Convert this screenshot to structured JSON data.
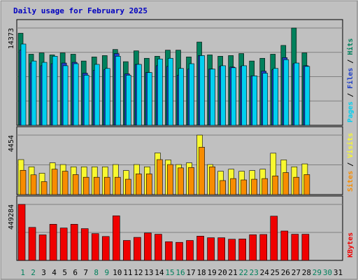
{
  "chart_data": [
    {
      "type": "bar",
      "title": "Daily usage for February 2025",
      "panel": "pages-files-hits",
      "ymax_label": "14373",
      "ylim": [
        0,
        14373
      ],
      "categories": [
        "1",
        "2",
        "3",
        "4",
        "5",
        "6",
        "7",
        "8",
        "9",
        "10",
        "11",
        "12",
        "13",
        "14",
        "15",
        "16",
        "17",
        "18",
        "19",
        "20",
        "21",
        "22",
        "23",
        "24",
        "25",
        "26",
        "27",
        "28",
        "29",
        "30",
        "31"
      ],
      "weekend_days": [
        1,
        2,
        8,
        9,
        15,
        16,
        22,
        23,
        29,
        30
      ],
      "y_axis_words": [
        "Hits",
        "Files",
        "Pages"
      ],
      "series": [
        {
          "name": "Hits",
          "color": "#00805C",
          "values": [
            13600,
            10500,
            10700,
            10400,
            10700,
            10500,
            9500,
            10100,
            10300,
            11200,
            9400,
            11000,
            9900,
            10200,
            11100,
            11100,
            10100,
            12300,
            10400,
            10200,
            10300,
            10600,
            9500,
            9900,
            10500,
            11800,
            14373,
            10700,
            0,
            0,
            0
          ]
        },
        {
          "name": "Files",
          "color": "#2040C8",
          "values": [
            11100,
            9200,
            8800,
            9100,
            9200,
            9300,
            7700,
            8100,
            8200,
            10600,
            7600,
            9000,
            7800,
            8800,
            8700,
            7400,
            8300,
            10300,
            8300,
            8700,
            8600,
            8700,
            7300,
            8000,
            8200,
            10000,
            9100,
            8800,
            0,
            0,
            0
          ]
        },
        {
          "name": "Pages",
          "color": "#00D0F0",
          "values": [
            12000,
            9500,
            9300,
            10200,
            8800,
            9100,
            7400,
            9000,
            8400,
            10200,
            7400,
            9000,
            7800,
            9800,
            9900,
            8400,
            9100,
            10300,
            8300,
            8800,
            8500,
            8800,
            7300,
            7700,
            8400,
            9700,
            9200,
            8700,
            0,
            0,
            0
          ]
        }
      ]
    },
    {
      "type": "bar",
      "panel": "visits-sites",
      "ymax_label": "4454",
      "ylim": [
        0,
        4454
      ],
      "y_axis_words": [
        "Visits",
        "Sites"
      ],
      "series": [
        {
          "name": "Visits",
          "color": "#F8F830",
          "values": [
            2620,
            2080,
            1600,
            2380,
            2250,
            2080,
            2080,
            2080,
            2080,
            2250,
            1800,
            2250,
            2080,
            3120,
            2600,
            2250,
            2380,
            4454,
            2250,
            1750,
            1900,
            1750,
            1800,
            1900,
            3100,
            2600,
            2080,
            2300,
            0,
            0,
            0
          ]
        },
        {
          "name": "Sites",
          "color": "#F88C00",
          "values": [
            1820,
            1480,
            970,
            1900,
            1750,
            1500,
            1300,
            1300,
            1300,
            1300,
            1150,
            1550,
            1550,
            2620,
            2250,
            2000,
            2030,
            3550,
            2080,
            1050,
            1200,
            1100,
            1150,
            1200,
            1400,
            1650,
            1300,
            1500,
            0,
            0,
            0
          ]
        }
      ]
    },
    {
      "type": "bar",
      "panel": "kbytes",
      "ymax_label": "449284",
      "ylim": [
        0,
        449284
      ],
      "y_axis_words": [
        "KBytes"
      ],
      "series": [
        {
          "name": "KBytes",
          "color": "#F00000",
          "values": [
            449284,
            265000,
            205000,
            290000,
            260000,
            290000,
            255000,
            215000,
            192000,
            358000,
            160000,
            185000,
            220000,
            210000,
            150000,
            145000,
            160000,
            195000,
            182000,
            182000,
            170000,
            172000,
            206000,
            208000,
            355000,
            236000,
            210000,
            210000,
            0,
            0,
            0
          ]
        }
      ]
    }
  ]
}
